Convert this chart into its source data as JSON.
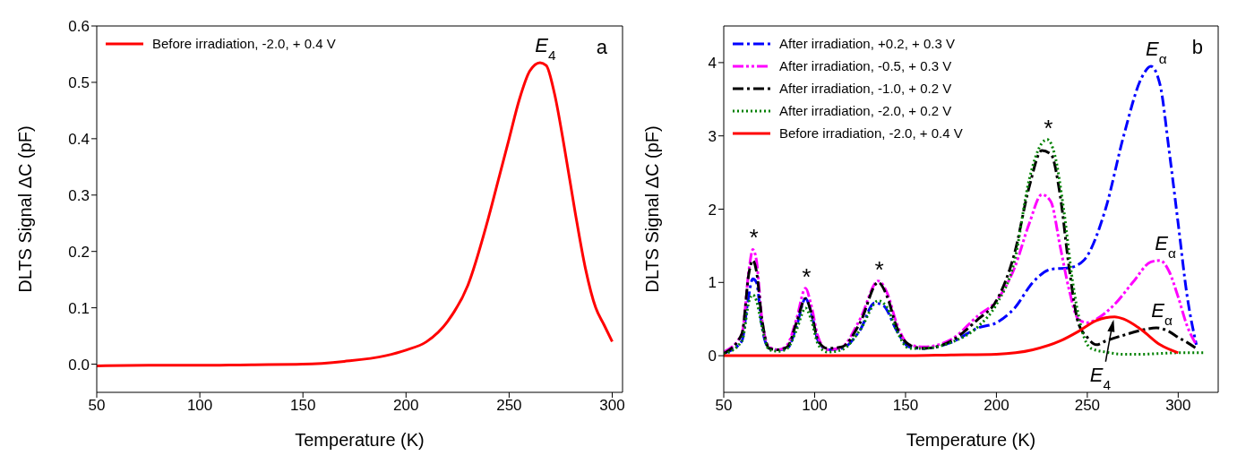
{
  "chart_data": [
    {
      "type": "line",
      "xlabel": "Temperature (K)",
      "ylabel": "DLTS Signal ΔC (pF)",
      "xlim": [
        50,
        305
      ],
      "xticks": [
        50,
        100,
        150,
        200,
        250,
        300
      ],
      "ylim": [
        -0.05,
        0.6
      ],
      "yticks": [
        {
          "value": 0,
          "label": "0.0"
        },
        0.1,
        0.2,
        0.3,
        0.4,
        0.5,
        0.6
      ],
      "legend": "top left",
      "grid": false,
      "marker": "none",
      "annotations": [
        {
          "text": "E$_{4}$",
          "x": 265,
          "y": 0.535
        },
        "a"
      ],
      "series": [
        {
          "name": "Before irradiation, -2.0, + 0.4 V",
          "color": "#ff0000",
          "line_style": "solid",
          "x": [
            50,
            75,
            100,
            125,
            150,
            170,
            190,
            200,
            210,
            220,
            230,
            240,
            245,
            250,
            255,
            260,
            265,
            268,
            272,
            277,
            282,
            287,
            292,
            296,
            300
          ],
          "values": [
            -0.003,
            -0.002,
            -0.002,
            -0.001,
            0.0,
            0.005,
            0.015,
            0.025,
            0.04,
            0.075,
            0.14,
            0.26,
            0.33,
            0.4,
            0.47,
            0.52,
            0.535,
            0.53,
            0.48,
            0.38,
            0.27,
            0.17,
            0.1,
            0.07,
            0.04
          ]
        }
      ]
    },
    {
      "type": "line",
      "xlabel": "Temperature (K)",
      "ylabel": "DLTS Signal ΔC (pF)",
      "xlim": [
        50,
        322
      ],
      "xticks": [
        50,
        100,
        150,
        200,
        250,
        300
      ],
      "ylim": [
        -0.5,
        4.5
      ],
      "yticks": [
        0,
        1,
        2,
        3,
        4
      ],
      "legend": "top left",
      "grid": false,
      "marker": "none",
      "annotations": [
        {
          "text": "*",
          "x": 66,
          "y": 1.45
        },
        {
          "text": "*",
          "x": 95,
          "y": 0.92
        },
        {
          "text": "*",
          "x": 135,
          "y": 1.02
        },
        {
          "text": "*",
          "x": 228,
          "y": 2.95
        },
        {
          "text": "E$_{α}$",
          "x": 285,
          "y": 3.95
        },
        {
          "text": "E$_{α}$",
          "x": 290,
          "y": 1.3
        },
        {
          "text": "E$_{α}$",
          "x": 288,
          "y": 0.38
        },
        {
          "text": "E$_{4}$",
          "x": 265,
          "y": 0.53
        },
        "b"
      ],
      "series": [
        {
          "name": "After irradiation, +0.2, + 0.3 V",
          "color": "#0000ff",
          "line_style": "dashdot",
          "x": [
            50,
            60,
            63,
            66,
            68,
            71,
            75,
            80,
            85,
            90,
            95,
            98,
            102,
            107,
            115,
            125,
            133,
            138,
            145,
            152,
            160,
            175,
            190,
            200,
            210,
            220,
            230,
            240,
            248,
            260,
            270,
            280,
            285,
            290,
            295,
            300,
            305,
            310
          ],
          "values": [
            0.03,
            0.2,
            0.7,
            1.05,
            1.0,
            0.4,
            0.1,
            0.08,
            0.1,
            0.4,
            0.78,
            0.6,
            0.2,
            0.08,
            0.1,
            0.35,
            0.72,
            0.68,
            0.35,
            0.12,
            0.1,
            0.18,
            0.38,
            0.45,
            0.65,
            1.0,
            1.18,
            1.2,
            1.3,
            2.0,
            3.0,
            3.8,
            3.95,
            3.7,
            2.8,
            1.8,
            0.8,
            0.15
          ]
        },
        {
          "name": "After irradiation, -0.5, + 0.3 V",
          "color": "#ff00ff",
          "line_style": "dashdotdot",
          "x": [
            50,
            60,
            64,
            66,
            68,
            71,
            75,
            80,
            85,
            90,
            95,
            98,
            102,
            107,
            115,
            125,
            135,
            140,
            145,
            152,
            160,
            175,
            190,
            200,
            210,
            218,
            225,
            230,
            235,
            240,
            245,
            250,
            255,
            265,
            275,
            285,
            290,
            295,
            300,
            305,
            310
          ],
          "values": [
            0.05,
            0.3,
            1.2,
            1.45,
            1.3,
            0.5,
            0.12,
            0.08,
            0.15,
            0.5,
            0.92,
            0.7,
            0.25,
            0.08,
            0.12,
            0.5,
            1.02,
            0.85,
            0.45,
            0.15,
            0.12,
            0.22,
            0.55,
            0.75,
            1.2,
            1.8,
            2.2,
            2.1,
            1.5,
            0.9,
            0.5,
            0.45,
            0.5,
            0.7,
            1.0,
            1.28,
            1.3,
            1.15,
            0.8,
            0.4,
            0.15
          ]
        },
        {
          "name": "After irradiation, -1.0, + 0.2 V",
          "color": "#000000",
          "line_style": "dashdot",
          "x": [
            50,
            60,
            64,
            66,
            68,
            71,
            75,
            80,
            85,
            90,
            95,
            98,
            102,
            107,
            115,
            125,
            135,
            140,
            145,
            152,
            160,
            175,
            190,
            200,
            210,
            218,
            225,
            230,
            235,
            240,
            245,
            250,
            255,
            260,
            270,
            280,
            288,
            295,
            300,
            305,
            310
          ],
          "values": [
            0.03,
            0.3,
            1.15,
            1.3,
            1.15,
            0.5,
            0.1,
            0.08,
            0.12,
            0.45,
            0.78,
            0.6,
            0.2,
            0.1,
            0.12,
            0.45,
            1.0,
            0.8,
            0.4,
            0.15,
            0.1,
            0.2,
            0.5,
            0.75,
            1.4,
            2.3,
            2.8,
            2.75,
            2.2,
            1.2,
            0.45,
            0.25,
            0.15,
            0.2,
            0.28,
            0.35,
            0.38,
            0.33,
            0.25,
            0.18,
            0.1
          ]
        },
        {
          "name": "After irradiation, -2.0, + 0.2 V",
          "color": "#008000",
          "line_style": "dotted",
          "x": [
            50,
            60,
            64,
            66,
            68,
            71,
            75,
            80,
            85,
            90,
            95,
            98,
            102,
            107,
            115,
            125,
            135,
            140,
            145,
            152,
            160,
            175,
            190,
            200,
            210,
            218,
            225,
            228,
            232,
            237,
            242,
            247,
            252,
            260,
            270,
            280,
            290,
            300,
            315
          ],
          "values": [
            0.02,
            0.2,
            0.75,
            0.83,
            0.75,
            0.4,
            0.08,
            0.06,
            0.1,
            0.35,
            0.65,
            0.5,
            0.15,
            0.05,
            0.08,
            0.35,
            0.75,
            0.65,
            0.35,
            0.1,
            0.1,
            0.18,
            0.4,
            0.7,
            1.3,
            2.4,
            2.9,
            2.95,
            2.75,
            2.0,
            1.0,
            0.35,
            0.1,
            0.05,
            0.02,
            0.02,
            0.03,
            0.04,
            0.04
          ]
        },
        {
          "name": "Before irradiation, -2.0, + 0.4 V",
          "color": "#ff0000",
          "line_style": "solid",
          "x": [
            50,
            100,
            150,
            175,
            200,
            220,
            235,
            245,
            255,
            265,
            270,
            280,
            290,
            300
          ],
          "values": [
            0,
            0,
            0,
            0.01,
            0.02,
            0.08,
            0.2,
            0.33,
            0.48,
            0.53,
            0.5,
            0.35,
            0.15,
            0.04
          ]
        }
      ]
    }
  ]
}
